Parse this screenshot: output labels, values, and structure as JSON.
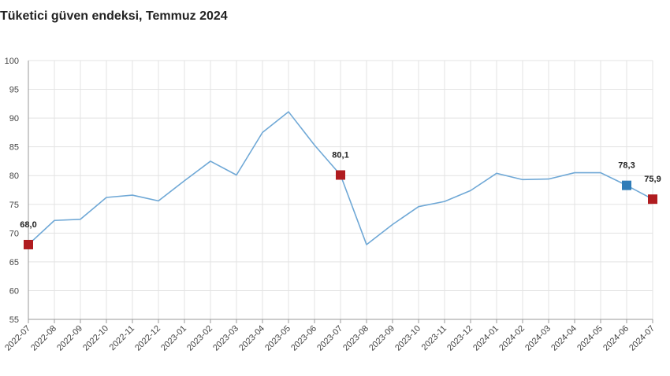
{
  "title": "Tüketici güven endeksi, Temmuz 2024",
  "chart_data": {
    "type": "line",
    "title": "Tüketici güven endeksi, Temmuz 2024",
    "xlabel": "",
    "ylabel": "",
    "ylim": [
      55,
      100
    ],
    "y_ticks": [
      "55",
      "60",
      "65",
      "70",
      "75",
      "80",
      "85",
      "90",
      "95",
      "100"
    ],
    "grid": true,
    "categories": [
      "2022-07",
      "2022-08",
      "2022-09",
      "2022-10",
      "2022-11",
      "2022-12",
      "2023-01",
      "2023-02",
      "2023-03",
      "2023-04",
      "2023-05",
      "2023-06",
      "2023-07",
      "2023-08",
      "2023-09",
      "2023-10",
      "2023-11",
      "2023-12",
      "2024-01",
      "2024-02",
      "2024-03",
      "2024-04",
      "2024-05",
      "2024-06",
      "2024-07"
    ],
    "series": [
      {
        "values": [
          68.0,
          72.2,
          72.4,
          76.2,
          76.6,
          75.6,
          79.1,
          82.5,
          80.1,
          87.5,
          91.1,
          85.3,
          80.1,
          68.0,
          71.5,
          74.6,
          75.5,
          77.4,
          80.4,
          79.3,
          79.4,
          80.5,
          80.5,
          78.3,
          75.9
        ],
        "color": "#6fa8d6"
      }
    ],
    "markers": [
      {
        "index": 0,
        "label": "68,0",
        "color": "#b01c20"
      },
      {
        "index": 12,
        "label": "80,1",
        "color": "#b01c20"
      },
      {
        "index": 23,
        "label": "78,3",
        "color": "#2f7cb8"
      },
      {
        "index": 24,
        "label": "75,9",
        "color": "#b01c20"
      }
    ]
  }
}
